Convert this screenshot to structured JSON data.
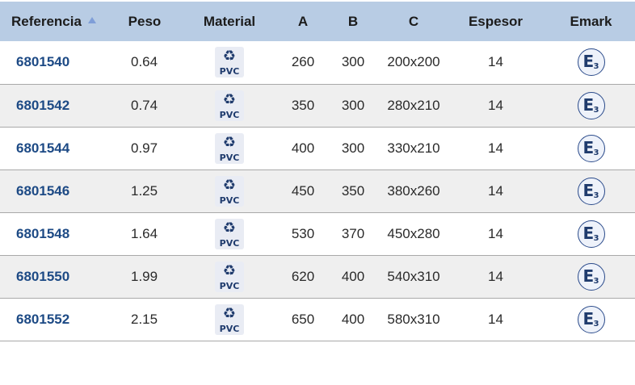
{
  "headers": {
    "referencia": "Referencia",
    "peso": "Peso",
    "material": "Material",
    "a": "A",
    "b": "B",
    "c": "C",
    "espesor": "Espesor",
    "emark": "Emark"
  },
  "material_label": "PVC",
  "emark_letter": "E",
  "emark_number": "3",
  "rows": [
    {
      "ref": "6801540",
      "peso": "0.64",
      "a": "260",
      "b": "300",
      "c": "200x200",
      "espesor": "14"
    },
    {
      "ref": "6801542",
      "peso": "0.74",
      "a": "350",
      "b": "300",
      "c": "280x210",
      "espesor": "14"
    },
    {
      "ref": "6801544",
      "peso": "0.97",
      "a": "400",
      "b": "300",
      "c": "330x210",
      "espesor": "14"
    },
    {
      "ref": "6801546",
      "peso": "1.25",
      "a": "450",
      "b": "350",
      "c": "380x260",
      "espesor": "14"
    },
    {
      "ref": "6801548",
      "peso": "1.64",
      "a": "530",
      "b": "370",
      "c": "450x280",
      "espesor": "14"
    },
    {
      "ref": "6801550",
      "peso": "1.99",
      "a": "620",
      "b": "400",
      "c": "540x310",
      "espesor": "14"
    },
    {
      "ref": "6801552",
      "peso": "2.15",
      "a": "650",
      "b": "400",
      "c": "580x310",
      "espesor": "14"
    }
  ]
}
